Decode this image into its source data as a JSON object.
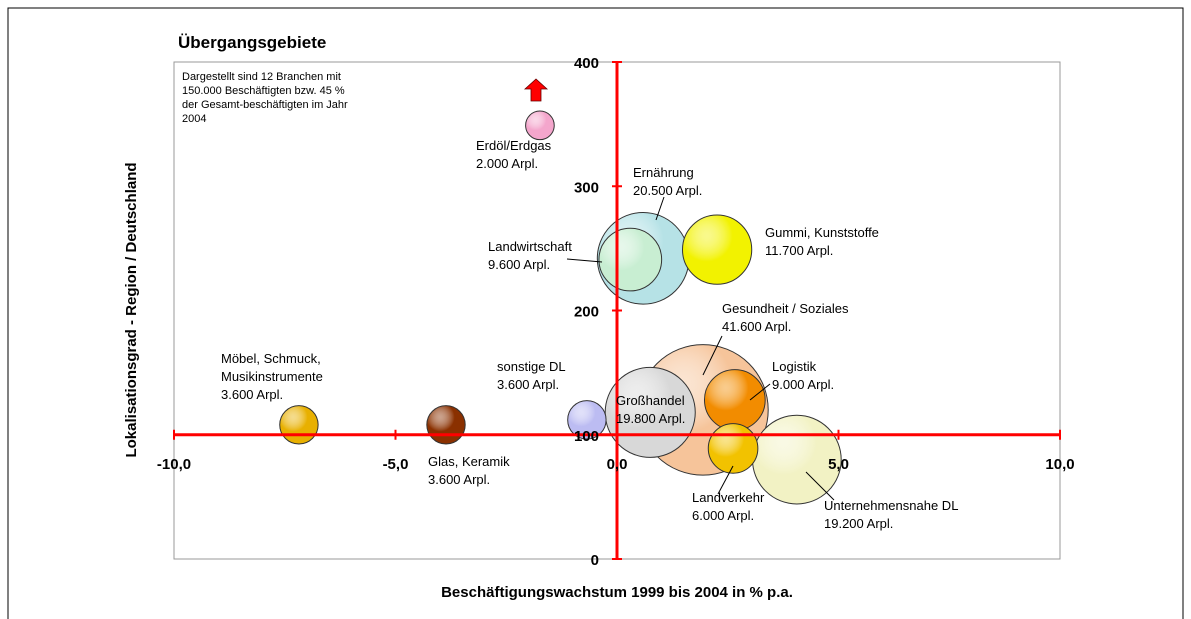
{
  "chart_data": {
    "type": "bubble",
    "title": "Übergangsgebiete",
    "annotation": [
      "Dargestellt sind 12 Branchen mit",
      "150.000 Beschäftigten bzw. 45 %",
      "der Gesamt-beschäftigten im Jahr",
      "2004"
    ],
    "x_label": "Beschäftigungswachstum 1999 bis 2004 in % p.a.",
    "y_label": "Lokalisationsgrad - Region / Deutschland",
    "categories": [
      [
        "Erdöl/Erdgas"
      ],
      [
        "Ernährung"
      ],
      [
        "Landwirtschaft"
      ],
      [
        "Gummi, Kunststoffe"
      ],
      [
        "Gesundheit / Soziales"
      ],
      [
        "Logistik"
      ],
      [
        "Landverkehr"
      ],
      [
        "Großhandel"
      ],
      [
        "sonstige DL"
      ],
      [
        "Unternehmensnahe DL"
      ],
      [
        "Möbel, Schmuck,",
        "Musikinstrumente"
      ],
      [
        "Glas, Keramik"
      ]
    ],
    "x": [
      -1.74,
      0.59,
      0.3,
      2.26,
      1.94,
      2.66,
      2.62,
      0.75,
      -0.68,
      4.06,
      -7.18,
      -3.86
    ],
    "values": [
      349,
      242,
      241,
      249,
      120,
      128,
      89,
      118,
      112,
      80,
      108,
      108
    ],
    "sizes": [
      2000,
      20500,
      9600,
      11700,
      41600,
      9000,
      6000,
      19800,
      3600,
      19200,
      3600,
      3600
    ],
    "value_labels": [
      "2.000 Arpl.",
      "20.500 Arpl.",
      "9.600 Arpl.",
      "11.700 Arpl.",
      "41.600 Arpl.",
      "9.000 Arpl.",
      "6.000 Arpl.",
      "19.800 Arpl.",
      "3.600 Arpl.",
      "19.200 Arpl.",
      "3.600 Arpl.",
      "3.600 Arpl."
    ],
    "colors": [
      "#f4a6cc",
      "#b6e2e6",
      "#c8eed2",
      "#f2f200",
      "#f6c49a",
      "#f28c00",
      "#f2c200",
      "#d8d8d8",
      "#bcbcf2",
      "#f2f2c4",
      "#e8b000",
      "#8a3000"
    ],
    "xlim": [
      -10,
      10
    ],
    "xticks": [
      {
        "value": -10,
        "label": "-10,0"
      },
      {
        "value": -5,
        "label": "-5,0"
      },
      {
        "value": 0,
        "label": "0,0"
      },
      {
        "value": 5,
        "label": "5,0"
      },
      {
        "value": 10,
        "label": "10,0"
      }
    ],
    "ylim": [
      0,
      400
    ],
    "yticks": [
      0,
      100,
      200,
      300,
      400
    ],
    "axis_color": "#ff0000"
  }
}
